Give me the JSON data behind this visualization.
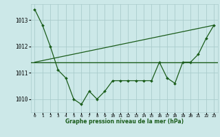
{
  "title": "Graphe pression niveau de la mer (hPa)",
  "background_color": "#cce8e8",
  "grid_color": "#aacccc",
  "line_color": "#1a5c1a",
  "xlim": [
    -0.5,
    23.5
  ],
  "ylim": [
    1009.5,
    1013.6
  ],
  "yticks": [
    1010,
    1011,
    1012,
    1013
  ],
  "xtick_labels": [
    "0",
    "1",
    "2",
    "3",
    "4",
    "5",
    "6",
    "7",
    "8",
    "9",
    "10",
    "11",
    "12",
    "13",
    "14",
    "15",
    "16",
    "17",
    "18",
    "19",
    "20",
    "21",
    "22",
    "23"
  ],
  "curve1_x": [
    0,
    1,
    2,
    3,
    4,
    5,
    6,
    7,
    8,
    9,
    10,
    11,
    12,
    13,
    14,
    15,
    16,
    17,
    18,
    19,
    20,
    21,
    22,
    23
  ],
  "curve1_y": [
    1013.4,
    1012.8,
    1012.0,
    1011.1,
    1010.8,
    1010.0,
    1009.8,
    1010.3,
    1010.0,
    1010.3,
    1010.7,
    1010.7,
    1010.7,
    1010.7,
    1010.7,
    1010.7,
    1011.4,
    1010.8,
    1010.6,
    1011.4,
    1011.4,
    1011.7,
    1012.3,
    1012.8
  ],
  "hline_y": 1011.4,
  "trend_x": [
    0,
    23
  ],
  "trend_y": [
    1011.4,
    1012.8
  ]
}
